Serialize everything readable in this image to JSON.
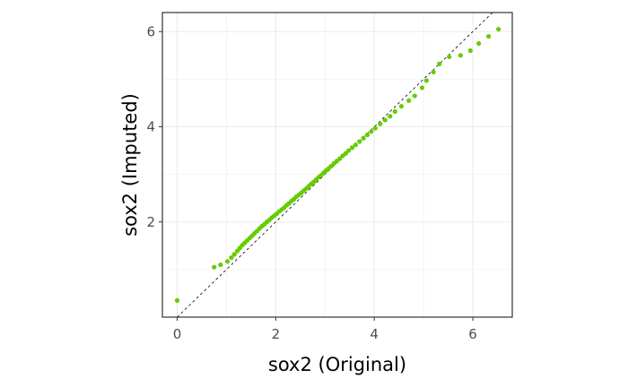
{
  "chart_data": {
    "type": "scatter",
    "title": "",
    "xlabel": "sox2 (Original)",
    "ylabel": "sox2 (Imputed)",
    "xlim": [
      -0.3,
      6.8
    ],
    "ylim": [
      0.0,
      6.4
    ],
    "xticks": [
      0,
      2,
      4,
      6
    ],
    "yticks": [
      2,
      4,
      6
    ],
    "grid": true,
    "reference_line": {
      "slope": 1,
      "intercept": 0,
      "style": "dashed",
      "color": "#000000"
    },
    "point_color": "#66cc00",
    "x": [
      0.0,
      0.75,
      0.88,
      1.02,
      1.1,
      1.16,
      1.22,
      1.27,
      1.32,
      1.37,
      1.42,
      1.47,
      1.52,
      1.57,
      1.62,
      1.67,
      1.72,
      1.77,
      1.82,
      1.87,
      1.92,
      1.97,
      2.02,
      2.07,
      2.12,
      2.17,
      2.22,
      2.27,
      2.32,
      2.37,
      2.42,
      2.47,
      2.52,
      2.57,
      2.62,
      2.67,
      2.72,
      2.77,
      2.82,
      2.87,
      2.92,
      2.97,
      3.02,
      3.07,
      3.12,
      3.18,
      3.24,
      3.3,
      3.36,
      3.42,
      3.48,
      3.55,
      3.62,
      3.7,
      3.78,
      3.86,
      3.94,
      4.02,
      4.12,
      4.22,
      4.32,
      4.42,
      4.55,
      4.7,
      4.82,
      4.97,
      5.06,
      5.2,
      5.32,
      5.52,
      5.75,
      5.95,
      6.12,
      6.32,
      6.52
    ],
    "y": [
      0.35,
      1.05,
      1.1,
      1.17,
      1.25,
      1.32,
      1.39,
      1.45,
      1.51,
      1.56,
      1.61,
      1.66,
      1.71,
      1.76,
      1.81,
      1.86,
      1.91,
      1.95,
      2.0,
      2.04,
      2.09,
      2.13,
      2.17,
      2.22,
      2.26,
      2.3,
      2.35,
      2.39,
      2.44,
      2.48,
      2.53,
      2.57,
      2.61,
      2.66,
      2.7,
      2.75,
      2.8,
      2.84,
      2.89,
      2.94,
      2.98,
      3.03,
      3.08,
      3.12,
      3.17,
      3.23,
      3.28,
      3.33,
      3.39,
      3.44,
      3.5,
      3.56,
      3.62,
      3.69,
      3.76,
      3.83,
      3.9,
      3.97,
      4.06,
      4.14,
      4.22,
      4.32,
      4.43,
      4.55,
      4.65,
      4.82,
      4.97,
      5.15,
      5.32,
      5.47,
      5.5,
      5.6,
      5.75,
      5.9,
      6.05
    ]
  }
}
